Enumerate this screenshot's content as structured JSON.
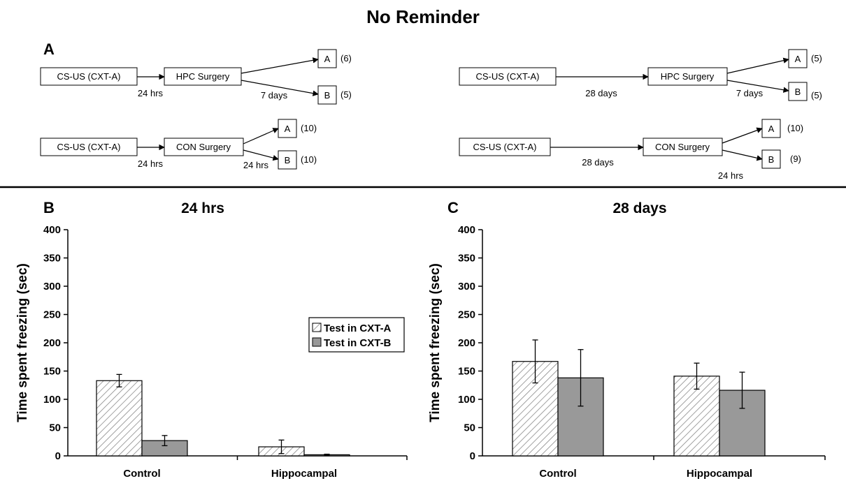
{
  "figure": {
    "title": "No Reminder",
    "panel_a_label": "A",
    "panel_b_label": "B",
    "panel_c_label": "C"
  },
  "diagram": {
    "left_top": {
      "start_box": "CS-US (CXT-A)",
      "start_interval": "24 hrs",
      "surgery_box": "HPC Surgery",
      "test_interval": "7 days",
      "test_a": "A",
      "test_a_n": "(6)",
      "test_b": "B",
      "test_b_n": "(5)"
    },
    "left_bottom": {
      "start_box": "CS-US (CXT-A)",
      "start_interval": "24 hrs",
      "surgery_box": "CON Surgery",
      "test_interval": "24 hrs",
      "test_a": "A",
      "test_a_n": "(10)",
      "test_b": "B",
      "test_b_n": "(10)"
    },
    "right_top": {
      "start_box": "CS-US (CXT-A)",
      "start_interval": "28 days",
      "surgery_box": "HPC Surgery",
      "test_interval": "7 days",
      "test_a": "A",
      "test_a_n": "(5)",
      "test_b": "B",
      "test_b_n": "(5)"
    },
    "right_bottom": {
      "start_box": "CS-US (CXT-A)",
      "start_interval": "28 days",
      "surgery_box": "CON Surgery",
      "test_interval": "24 hrs",
      "test_a": "A",
      "test_a_n": "(10)",
      "test_b": "B",
      "test_b_n": "(9)"
    }
  },
  "chart_data": [
    {
      "type": "bar",
      "title": "24 hrs",
      "ylabel": "Time spent freezing (sec)",
      "ylim": [
        0,
        400
      ],
      "yticks": [
        0,
        50,
        100,
        150,
        200,
        250,
        300,
        350,
        400
      ],
      "categories": [
        "Control",
        "Hippocampal"
      ],
      "legend_position": "right",
      "series": [
        {
          "name": "Test in CXT-A",
          "pattern": "hatched",
          "color": "#ffffff",
          "values": [
            133,
            16
          ],
          "errors": [
            11,
            12
          ]
        },
        {
          "name": "Test in CXT-B",
          "pattern": "solid",
          "color": "#999999",
          "values": [
            27,
            2
          ],
          "errors": [
            9,
            1
          ]
        }
      ]
    },
    {
      "type": "bar",
      "title": "28 days",
      "ylabel": "Time spent freezing (sec)",
      "ylim": [
        0,
        400
      ],
      "yticks": [
        0,
        50,
        100,
        150,
        200,
        250,
        300,
        350,
        400
      ],
      "categories": [
        "Control",
        "Hippocampal"
      ],
      "series": [
        {
          "name": "Test in CXT-A",
          "pattern": "hatched",
          "color": "#ffffff",
          "values": [
            167,
            141
          ],
          "errors": [
            38,
            23
          ]
        },
        {
          "name": "Test in CXT-B",
          "pattern": "solid",
          "color": "#999999",
          "values": [
            138,
            116
          ],
          "errors": [
            50,
            32
          ]
        }
      ]
    }
  ]
}
